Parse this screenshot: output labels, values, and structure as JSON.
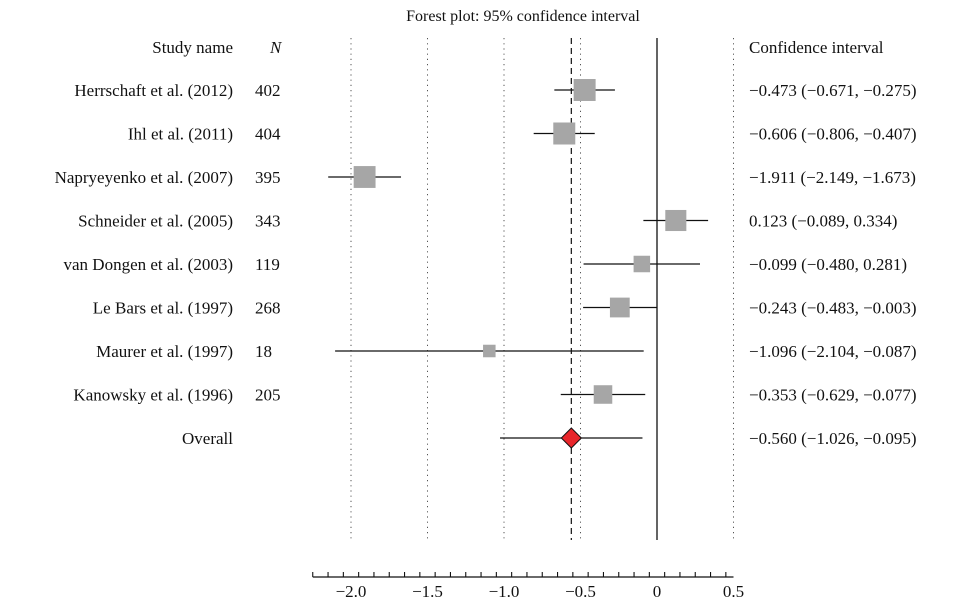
{
  "chart_data": {
    "type": "forest",
    "title": "Forest plot: 95% confidence interval",
    "headers": {
      "study": "Study name",
      "n": "N",
      "ci": "Confidence interval"
    },
    "xlim": [
      -2.25,
      0.5
    ],
    "xticks": [
      -2.0,
      -1.5,
      -1.0,
      -0.5,
      0,
      0.5
    ],
    "xtick_labels": [
      "−2.0",
      "−1.5",
      "−1.0",
      "−0.5",
      "0",
      "0.5"
    ],
    "grid_dotted": [
      -2.0,
      -1.5,
      -1.0,
      -0.5,
      0.5
    ],
    "reference_line": 0,
    "pooled_line": -0.56,
    "studies": [
      {
        "name": "Herrschaft et al. (2012)",
        "n": "402",
        "est": -0.473,
        "lo": -0.671,
        "hi": -0.275,
        "ci_text": "−0.473 (−0.671, −0.275)"
      },
      {
        "name": "Ihl et al. (2011)",
        "n": "404",
        "est": -0.606,
        "lo": -0.806,
        "hi": -0.407,
        "ci_text": "−0.606 (−0.806, −0.407)"
      },
      {
        "name": "Napryeyenko et al. (2007)",
        "n": "395",
        "est": -1.911,
        "lo": -2.149,
        "hi": -1.673,
        "ci_text": "−1.911 (−2.149, −1.673)"
      },
      {
        "name": "Schneider et al. (2005)",
        "n": "343",
        "est": 0.123,
        "lo": -0.089,
        "hi": 0.334,
        "ci_text": "0.123 (−0.089, 0.334)"
      },
      {
        "name": "van Dongen et al. (2003)",
        "n": "119",
        "est": -0.099,
        "lo": -0.48,
        "hi": 0.281,
        "ci_text": "−0.099 (−0.480, 0.281)"
      },
      {
        "name": "Le Bars et al. (1997)",
        "n": "268",
        "est": -0.243,
        "lo": -0.483,
        "hi": -0.003,
        "ci_text": "−0.243 (−0.483, −0.003)"
      },
      {
        "name": "Maurer et al. (1997)",
        "n": "18",
        "est": -1.096,
        "lo": -2.104,
        "hi": -0.087,
        "ci_text": "−1.096 (−2.104, −0.087)"
      },
      {
        "name": "Kanowsky et al. (1996)",
        "n": "205",
        "est": -0.353,
        "lo": -0.629,
        "hi": -0.077,
        "ci_text": "−0.353 (−0.629, −0.077)"
      }
    ],
    "overall": {
      "name": "Overall",
      "est": -0.56,
      "lo": -1.026,
      "hi": -0.095,
      "ci_text": "−0.560 (−1.026, −0.095)"
    },
    "colors": {
      "square": "#a6a6a6",
      "diamond": "#e8262b",
      "line": "#111111",
      "grid": "#555555"
    }
  }
}
